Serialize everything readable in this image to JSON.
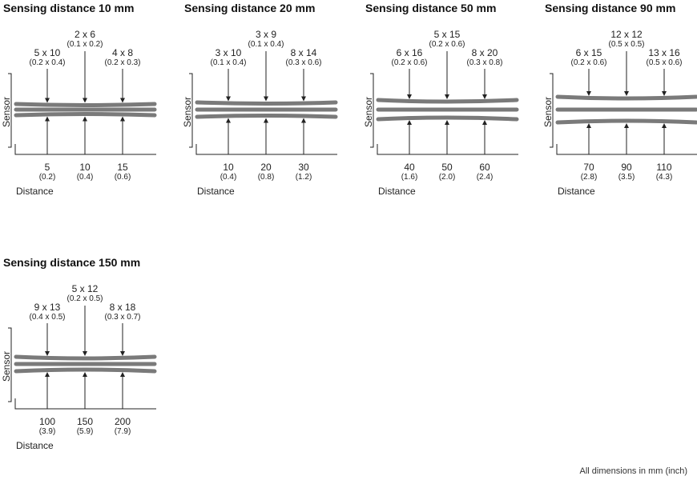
{
  "panels": [
    {
      "title": "Sensing distance 10 mm",
      "spacing": 7,
      "pinch": 1.5,
      "spots": [
        {
          "size": "5 x 10",
          "inch": "(0.2 x 0.4)"
        },
        {
          "size": "2 x 6",
          "inch": "(0.1 x 0.2)"
        },
        {
          "size": "4 x 8",
          "inch": "(0.2 x 0.3)"
        }
      ],
      "distances": [
        {
          "mm": "5",
          "inch": "(0.2)"
        },
        {
          "mm": "10",
          "inch": "(0.4)"
        },
        {
          "mm": "15",
          "inch": "(0.6)"
        }
      ]
    },
    {
      "title": "Sensing distance 20 mm",
      "spacing": 9,
      "pinch": 1.5,
      "spots": [
        {
          "size": "3 x 10",
          "inch": "(0.1 x 0.4)"
        },
        {
          "size": "3 x 9",
          "inch": "(0.1 x 0.4)"
        },
        {
          "size": "8 x 14",
          "inch": "(0.3 x 0.6)"
        }
      ],
      "distances": [
        {
          "mm": "10",
          "inch": "(0.4)"
        },
        {
          "mm": "20",
          "inch": "(0.8)"
        },
        {
          "mm": "30",
          "inch": "(1.2)"
        }
      ]
    },
    {
      "title": "Sensing distance 50 mm",
      "spacing": 12,
      "pinch": 2,
      "spots": [
        {
          "size": "6 x 16",
          "inch": "(0.2 x 0.6)"
        },
        {
          "size": "5 x 15",
          "inch": "(0.2 x 0.6)"
        },
        {
          "size": "8 x 20",
          "inch": "(0.3 x 0.8)"
        }
      ],
      "distances": [
        {
          "mm": "40",
          "inch": "(1.6)"
        },
        {
          "mm": "50",
          "inch": "(2.0)"
        },
        {
          "mm": "60",
          "inch": "(2.4)"
        }
      ]
    },
    {
      "title": "Sensing distance 90 mm",
      "spacing": 16,
      "pinch": 2,
      "spots": [
        {
          "size": "6 x 15",
          "inch": "(0.2 x 0.6)"
        },
        {
          "size": "12 x 12",
          "inch": "(0.5 x 0.5)"
        },
        {
          "size": "13 x 16",
          "inch": "(0.5 x 0.6)"
        }
      ],
      "distances": [
        {
          "mm": "70",
          "inch": "(2.8)"
        },
        {
          "mm": "90",
          "inch": "(3.5)"
        },
        {
          "mm": "110",
          "inch": "(4.3)"
        }
      ]
    },
    {
      "title": "Sensing distance 150 mm",
      "spacing": 9,
      "pinch": 2,
      "spots": [
        {
          "size": "9 x 13",
          "inch": "(0.4 x 0.5)"
        },
        {
          "size": "5 x 12",
          "inch": "(0.2 x 0.5)"
        },
        {
          "size": "8 x 18",
          "inch": "(0.3 x 0.7)"
        }
      ],
      "distances": [
        {
          "mm": "100",
          "inch": "(3.9)"
        },
        {
          "mm": "150",
          "inch": "(5.9)"
        },
        {
          "mm": "200",
          "inch": "(7.9)"
        }
      ]
    }
  ],
  "sensor_label": "Sensor",
  "distance_label": "Distance",
  "footer": "All dimensions in mm (inch)",
  "colors": {
    "beam": "#7a7a7a",
    "line": "#222222"
  }
}
